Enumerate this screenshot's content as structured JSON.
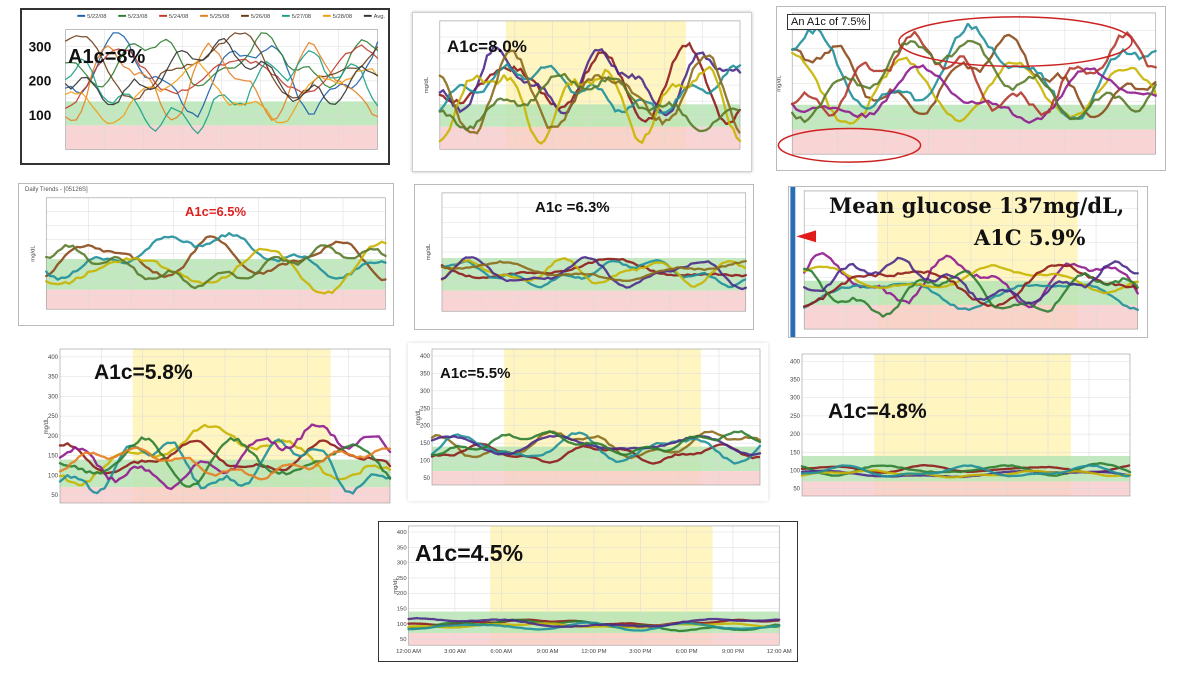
{
  "chart_data": [
    {
      "type": "line",
      "annotation": "A1c=8%",
      "legend": [
        "5/22/08",
        "5/23/08",
        "5/24/08",
        "5/25/08",
        "5/26/08",
        "5/27/08",
        "5/28/08",
        "Avg."
      ],
      "y_ticks_left": [
        "300",
        "200",
        "100"
      ],
      "ylim": [
        0,
        350
      ],
      "target_range": [
        70,
        140
      ],
      "series_colors": [
        "#1a5fa8",
        "#2e7d32",
        "#c0392b",
        "#e67e22",
        "#6b3b16",
        "#16a085",
        "#f39c12",
        "#333333"
      ]
    },
    {
      "type": "line",
      "annotation": "A1c=8.0%",
      "ylabel": "mg/dL",
      "ylim": [
        0,
        400
      ],
      "target_range": [
        70,
        140
      ],
      "series_colors": [
        "#8e1b1b",
        "#4a2a8a",
        "#1f8f9a",
        "#c8b400",
        "#8b6b1a",
        "#5a7a2a"
      ]
    },
    {
      "type": "line",
      "annotation": "An A1c of 7.5%",
      "ylabel": "mg/dL",
      "ylim": [
        0,
        400
      ],
      "target_range": [
        70,
        140
      ],
      "series_colors": [
        "#8b4a1a",
        "#c8b400",
        "#1f8f9a",
        "#8e1b8e",
        "#b03a2e",
        "#5a7a2a"
      ]
    },
    {
      "type": "line",
      "header": "Daily Trends -  [05126S]",
      "annotation": "A1c=6.5%",
      "ylabel": "mg/dL",
      "ylim": [
        0,
        400
      ],
      "target_range": [
        70,
        180
      ],
      "series_colors": [
        "#8b4a1a",
        "#1f8f9a",
        "#c8b400",
        "#5a7a2a"
      ]
    },
    {
      "type": "line",
      "annotation": "A1c =6.3%",
      "ylabel": "mg/dL",
      "ylim": [
        0,
        400
      ],
      "target_range": [
        70,
        180
      ],
      "series_colors": [
        "#8e1b1b",
        "#1f8f9a",
        "#c8b400",
        "#4a2a8a",
        "#8b6b1a"
      ]
    },
    {
      "type": "line",
      "annotation_line1": "Mean glucose 137mg/dL,",
      "annotation_line2": "A1C 5.9%",
      "ylim": [
        0,
        400
      ],
      "target_range": [
        70,
        140
      ],
      "series_colors": [
        "#8e1b8e",
        "#1f8f9a",
        "#c8b400",
        "#8e1b1b",
        "#2e7d32",
        "#4a2a8a"
      ]
    },
    {
      "type": "line",
      "annotation": "A1c=5.8%",
      "ylabel": "mg/dL",
      "y_ticks": [
        "400",
        "350",
        "300",
        "250",
        "200",
        "150",
        "100",
        "50"
      ],
      "ylim": [
        30,
        420
      ],
      "target_range": [
        70,
        140
      ],
      "series_colors": [
        "#c8b400",
        "#8e1b1b",
        "#1f8f9a",
        "#8e1b8e",
        "#2e7d32",
        "#e67e22"
      ]
    },
    {
      "type": "line",
      "annotation": "A1c=5.5%",
      "ylabel": "mg/dL",
      "y_ticks": [
        "400",
        "350",
        "300",
        "250",
        "200",
        "150",
        "100",
        "50"
      ],
      "ylim": [
        30,
        420
      ],
      "target_range": [
        70,
        140
      ],
      "series_colors": [
        "#8b6b1a",
        "#8e1b1b",
        "#1f8f9a",
        "#4a2a8a",
        "#2e7d32"
      ]
    },
    {
      "type": "line",
      "annotation": "A1c=4.8%",
      "y_ticks": [
        "400",
        "350",
        "300",
        "250",
        "200",
        "150",
        "100",
        "50"
      ],
      "ylim": [
        30,
        420
      ],
      "target_range": [
        70,
        140
      ],
      "series_colors": [
        "#8e1b1b",
        "#2e7d32",
        "#4a2a8a",
        "#c8b400",
        "#1f8f9a"
      ]
    },
    {
      "type": "line",
      "annotation": "A1c=4.5%",
      "ylabel": "mg/dL",
      "y_ticks": [
        "400",
        "350",
        "300",
        "250",
        "200",
        "150",
        "100",
        "50"
      ],
      "ylim": [
        30,
        420
      ],
      "target_range": [
        70,
        140
      ],
      "x_ticks": [
        "12:00 AM",
        "3:00 AM",
        "6:00 AM",
        "9:00 AM",
        "12:00 PM",
        "3:00 PM",
        "6:00 PM",
        "9:00 PM",
        "12:00 AM"
      ],
      "series_colors": [
        "#8e1b1b",
        "#2e7d32",
        "#c8b400",
        "#1f8f9a",
        "#4a2a8a"
      ]
    }
  ],
  "colors": {
    "target_band": "#b7e4b4",
    "low_band": "#f7c9c9",
    "day_highlight": "#fff3b0",
    "ellipse": "#cc2222",
    "red_arrow": "#e01b1b",
    "annotation_red": "#e02020"
  }
}
